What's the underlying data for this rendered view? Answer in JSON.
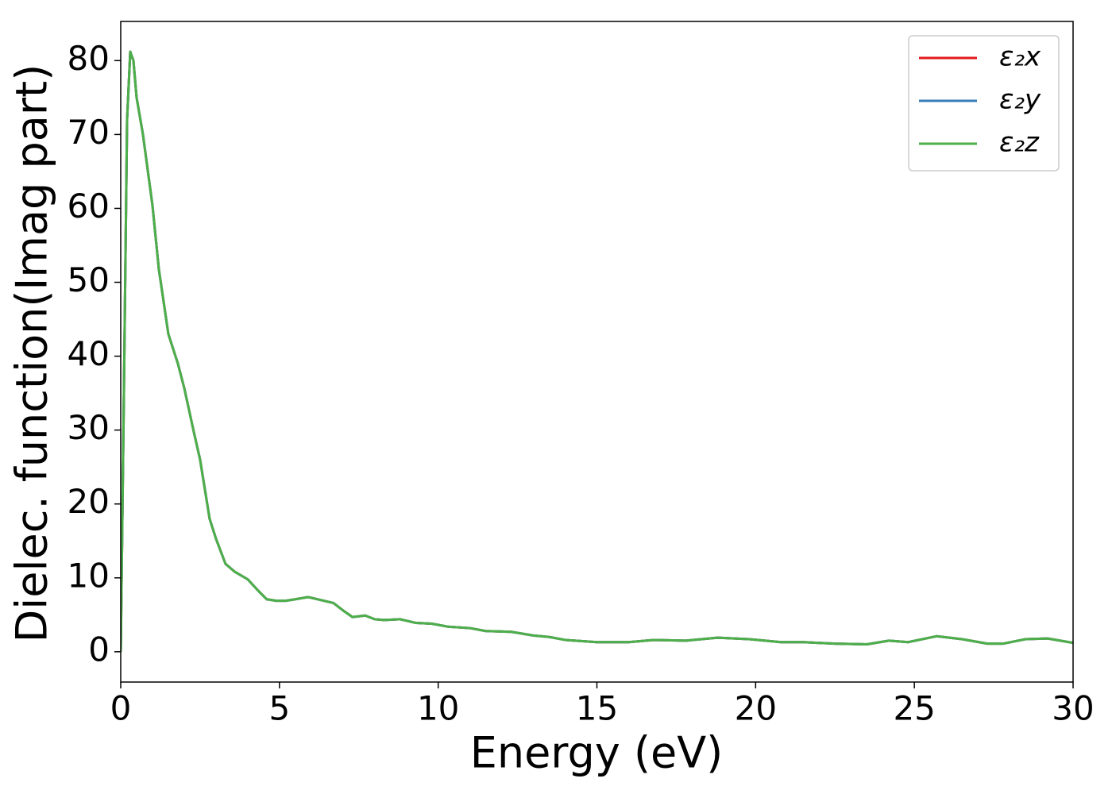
{
  "chart_data": {
    "type": "line",
    "xlabel": "Energy (eV)",
    "ylabel": "Dielec. function(Imag part)",
    "x": [
      0,
      0.1,
      0.2,
      0.3,
      0.4,
      0.5,
      0.7,
      1.0,
      1.2,
      1.5,
      1.8,
      2.0,
      2.3,
      2.5,
      2.8,
      3.0,
      3.3,
      3.6,
      4.0,
      4.3,
      4.6,
      4.9,
      5.2,
      5.5,
      5.9,
      6.3,
      6.7,
      7.0,
      7.3,
      7.7,
      8.0,
      8.3,
      8.8,
      9.3,
      9.8,
      10.3,
      11.0,
      11.5,
      12.3,
      13.0,
      13.5,
      14.0,
      15.0,
      16.0,
      16.8,
      17.8,
      18.8,
      19.8,
      20.8,
      21.5,
      22.5,
      23.5,
      24.2,
      24.8,
      25.7,
      26.5,
      27.3,
      27.8,
      28.5,
      29.2,
      30
    ],
    "series": [
      {
        "name": "ε₂x",
        "color": "#e41a1c",
        "values": [
          0,
          35,
          72,
          81.2,
          80,
          75,
          70,
          60.4,
          51.8,
          43,
          39,
          35.7,
          29.8,
          26,
          18,
          15.3,
          11.9,
          10.8,
          9.8,
          8.4,
          7.1,
          6.9,
          6.9,
          7.1,
          7.4,
          7.0,
          6.6,
          5.6,
          4.7,
          4.9,
          4.4,
          4.3,
          4.4,
          3.9,
          3.8,
          3.4,
          3.2,
          2.8,
          2.7,
          2.2,
          2.0,
          1.6,
          1.3,
          1.3,
          1.6,
          1.5,
          1.9,
          1.7,
          1.3,
          1.3,
          1.1,
          1.0,
          1.5,
          1.3,
          2.1,
          1.7,
          1.1,
          1.1,
          1.7,
          1.8,
          1.2
        ]
      },
      {
        "name": "ε₂y",
        "color": "#377eb8",
        "values": [
          0,
          35,
          72,
          81.2,
          80,
          75,
          70,
          60.4,
          51.8,
          43,
          39,
          35.7,
          29.8,
          26,
          18,
          15.3,
          11.9,
          10.8,
          9.8,
          8.4,
          7.1,
          6.9,
          6.9,
          7.1,
          7.4,
          7.0,
          6.6,
          5.6,
          4.7,
          4.9,
          4.4,
          4.3,
          4.4,
          3.9,
          3.8,
          3.4,
          3.2,
          2.8,
          2.7,
          2.2,
          2.0,
          1.6,
          1.3,
          1.3,
          1.6,
          1.5,
          1.9,
          1.7,
          1.3,
          1.3,
          1.1,
          1.0,
          1.5,
          1.3,
          2.1,
          1.7,
          1.1,
          1.1,
          1.7,
          1.8,
          1.2
        ]
      },
      {
        "name": "ε₂z",
        "color": "#4daf4a",
        "values": [
          0,
          35,
          72,
          81.2,
          80,
          75,
          70,
          60.4,
          51.8,
          43,
          39,
          35.7,
          29.8,
          26,
          18,
          15.3,
          11.9,
          10.8,
          9.8,
          8.4,
          7.1,
          6.9,
          6.9,
          7.1,
          7.4,
          7.0,
          6.6,
          5.6,
          4.7,
          4.9,
          4.4,
          4.3,
          4.4,
          3.9,
          3.8,
          3.4,
          3.2,
          2.8,
          2.7,
          2.2,
          2.0,
          1.6,
          1.3,
          1.3,
          1.6,
          1.5,
          1.9,
          1.7,
          1.3,
          1.3,
          1.1,
          1.0,
          1.5,
          1.3,
          2.1,
          1.7,
          1.1,
          1.1,
          1.7,
          1.8,
          1.2
        ]
      }
    ],
    "xlim": [
      0,
      30
    ],
    "xticks": [
      0,
      5,
      10,
      15,
      20,
      25,
      30
    ],
    "ylim": [
      -4.1,
      85.3
    ],
    "yticks": [
      0,
      10,
      20,
      30,
      40,
      50,
      60,
      70,
      80
    ],
    "grid": false,
    "legend": "upper right"
  }
}
